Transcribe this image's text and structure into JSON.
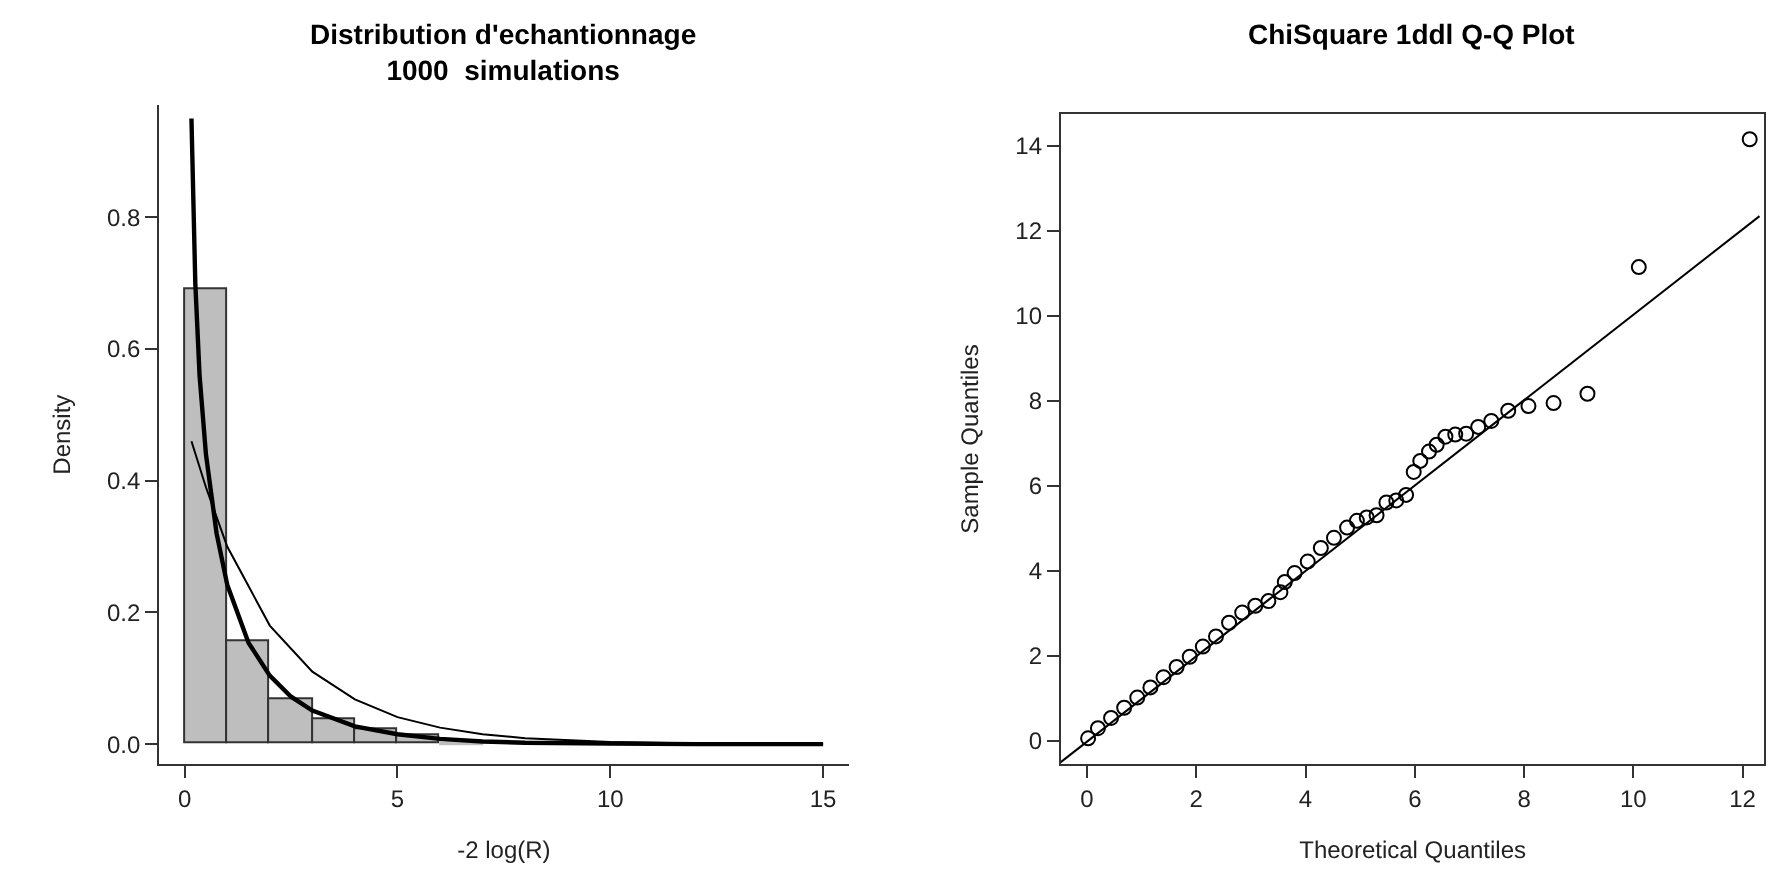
{
  "chart_data": [
    {
      "type": "histogram",
      "title": "Distribution d'echantionnage\n1000  simulations",
      "xlabel": "-2 log(R)",
      "ylabel": "Density",
      "xlim": [
        -0.6,
        15.6
      ],
      "xticks": [
        0,
        5,
        10,
        15
      ],
      "ylim": [
        -0.03,
        0.97
      ],
      "yticks": [
        {
          "value": 0,
          "label": "0.0"
        },
        {
          "value": 0.2,
          "label": "0.2"
        },
        {
          "value": 0.4,
          "label": "0.4"
        },
        {
          "value": 0.6,
          "label": "0.6"
        },
        {
          "value": 0.8,
          "label": "0.8"
        }
      ],
      "series": [
        {
          "type": "histogram",
          "color": "#bebebe",
          "bins": [
            0,
            1,
            2,
            3,
            4,
            5,
            6,
            7,
            8,
            9,
            10,
            11,
            12,
            13,
            14,
            15
          ],
          "values": [
            0.691,
            0.156,
            0.068,
            0.039,
            0.022,
            0.014,
            0.005,
            null,
            null,
            0,
            0,
            0.001,
            0,
            0,
            null
          ]
        },
        {
          "type": "line",
          "color": "#000000",
          "x": [
            0.16,
            0.25,
            0.35,
            0.5,
            0.75,
            1,
            1.5,
            2,
            2.5,
            3,
            4,
            5,
            6,
            7,
            8,
            10,
            12,
            15
          ],
          "values": [
            0.95,
            0.7,
            0.56,
            0.44,
            0.32,
            0.242,
            0.154,
            0.104,
            0.072,
            0.051,
            0.027,
            0.015,
            0.008,
            0.004,
            0.002,
            0.001,
            0.0,
            0.0
          ]
        },
        {
          "type": "line",
          "color": "#000000",
          "x": [
            0.16,
            0.5,
            1,
            1.5,
            2,
            3,
            4,
            5,
            6,
            7,
            8,
            10,
            12,
            15
          ],
          "values": [
            0.46,
            0.39,
            0.3,
            0.24,
            0.18,
            0.11,
            0.068,
            0.041,
            0.025,
            0.015,
            0.009,
            0.003,
            0.001,
            0.0
          ]
        }
      ]
    },
    {
      "type": "scatter",
      "title": "ChiSquare 1ddl Q-Q Plot",
      "xlabel": "Theoretical Quantiles",
      "ylabel": "Sample Quantiles",
      "xlim": [
        -0.48,
        12.4
      ],
      "xticks": [
        0,
        2,
        4,
        6,
        8,
        10,
        12
      ],
      "ylim": [
        -0.54,
        14.75
      ],
      "yticks": [
        0,
        2,
        4,
        6,
        8,
        10,
        12,
        14
      ],
      "series": [
        {
          "type": "scatter",
          "color": "#000000",
          "marker": "circle",
          "x": [
            0.02,
            0.2,
            0.44,
            0.68,
            0.92,
            1.16,
            1.4,
            1.64,
            1.88,
            2.12,
            2.36,
            2.6,
            2.84,
            3.08,
            3.32,
            3.54,
            3.62,
            3.8,
            4.04,
            4.28,
            4.52,
            4.76,
            4.94,
            5.12,
            5.3,
            5.48,
            5.66,
            5.84,
            5.98,
            6.1,
            6.26,
            6.4,
            6.56,
            6.74,
            6.94,
            7.16,
            7.4,
            7.71,
            8.08,
            8.54,
            9.16,
            10.1,
            12.13
          ],
          "values": [
            0.06,
            0.3,
            0.54,
            0.78,
            1.02,
            1.26,
            1.5,
            1.74,
            1.98,
            2.22,
            2.46,
            2.78,
            3.02,
            3.18,
            3.29,
            3.5,
            3.74,
            3.95,
            4.22,
            4.54,
            4.78,
            5.02,
            5.18,
            5.26,
            5.31,
            5.61,
            5.66,
            5.79,
            6.33,
            6.59,
            6.81,
            6.97,
            7.16,
            7.21,
            7.23,
            7.39,
            7.53,
            7.77,
            7.88,
            7.95,
            8.17,
            11.15,
            14.16
          ]
        },
        {
          "type": "line",
          "color": "#000000",
          "x": [
            -0.48,
            12.31
          ],
          "values": [
            -0.5,
            12.35
          ]
        }
      ]
    }
  ]
}
